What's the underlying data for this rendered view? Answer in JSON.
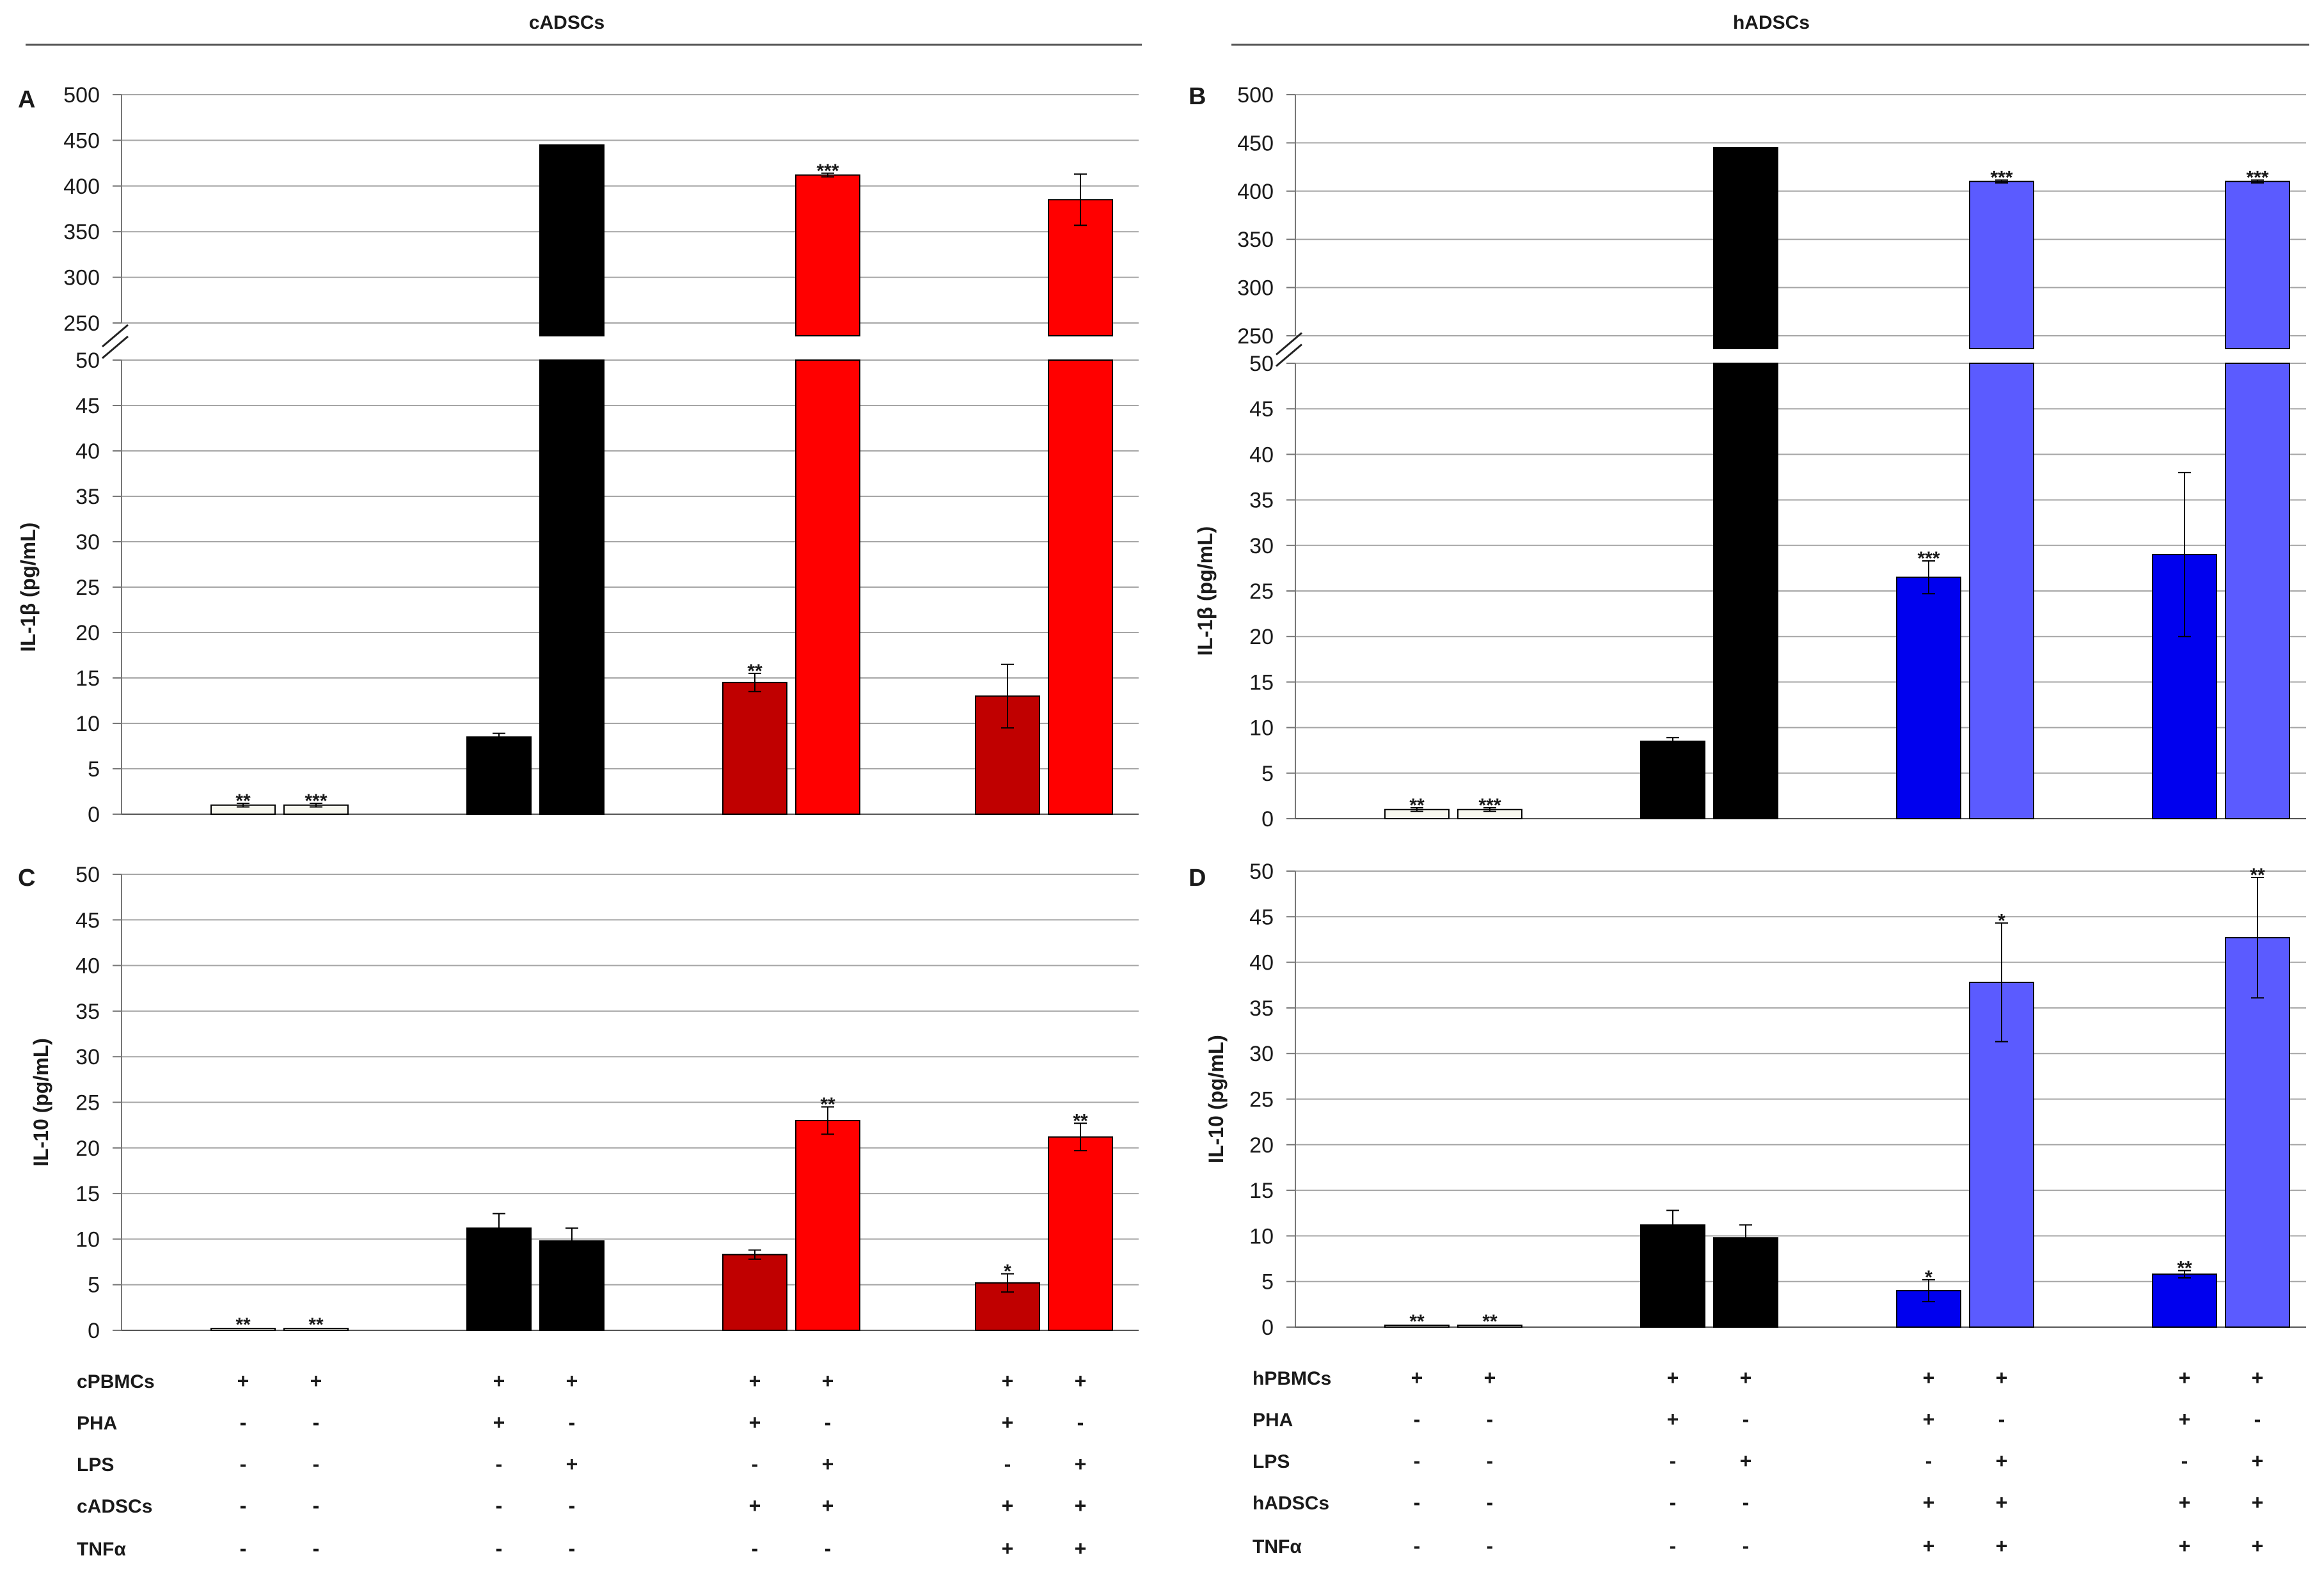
{
  "headers": {
    "left": "cADSCs",
    "right": "hADSCs"
  },
  "colors": {
    "control": "#f7f7ef",
    "pha": "#000000",
    "lps": "#000000",
    "cadsc_pha": "#c00000",
    "cadsc_lps": "#ff0000",
    "hadsc_pha": "#0000ee",
    "hadsc_lps": "#5b5bff"
  },
  "chart_data": [
    {
      "panel": "A",
      "type": "bar",
      "title": "",
      "ylabel": "IL-1β (pg/mL)",
      "broken_axis": true,
      "lower_ylim": [
        0,
        50
      ],
      "lower_ticks": [
        0,
        5,
        10,
        15,
        20,
        25,
        30,
        35,
        40,
        45,
        50
      ],
      "upper_ylim": [
        250,
        500
      ],
      "upper_ticks": [
        250,
        300,
        350,
        400,
        450,
        500
      ],
      "groups": 4,
      "bars": [
        {
          "group": 0,
          "slot": 0,
          "value": 1.0,
          "error": 0.2,
          "color": "control",
          "sig": "**"
        },
        {
          "group": 0,
          "slot": 1,
          "value": 1.0,
          "error": 0.2,
          "color": "control",
          "sig": "***"
        },
        {
          "group": 1,
          "slot": 0,
          "value": 8.5,
          "error": 0.4,
          "color": "pha",
          "sig": ""
        },
        {
          "group": 1,
          "slot": 1,
          "value": 445,
          "error": 0,
          "color": "lps",
          "sig": ""
        },
        {
          "group": 2,
          "slot": 0,
          "value": 14.5,
          "error": 1.0,
          "color": "cadsc_pha",
          "sig": "**"
        },
        {
          "group": 2,
          "slot": 1,
          "value": 412,
          "error": 2,
          "color": "cadsc_lps",
          "sig": "***"
        },
        {
          "group": 3,
          "slot": 0,
          "value": 13.0,
          "error": 3.5,
          "color": "cadsc_pha",
          "sig": ""
        },
        {
          "group": 3,
          "slot": 1,
          "value": 385,
          "error": 28,
          "color": "cadsc_lps",
          "sig": ""
        }
      ]
    },
    {
      "panel": "B",
      "type": "bar",
      "title": "",
      "ylabel": "IL-1β (pg/mL)",
      "broken_axis": true,
      "lower_ylim": [
        0,
        50
      ],
      "lower_ticks": [
        0,
        5,
        10,
        15,
        20,
        25,
        30,
        35,
        40,
        45,
        50
      ],
      "upper_ylim": [
        250,
        500
      ],
      "upper_ticks": [
        250,
        300,
        350,
        400,
        450,
        500
      ],
      "groups": 4,
      "bars": [
        {
          "group": 0,
          "slot": 0,
          "value": 1.0,
          "error": 0.2,
          "color": "control",
          "sig": "**"
        },
        {
          "group": 0,
          "slot": 1,
          "value": 1.0,
          "error": 0.2,
          "color": "control",
          "sig": "***"
        },
        {
          "group": 1,
          "slot": 0,
          "value": 8.5,
          "error": 0.4,
          "color": "pha",
          "sig": ""
        },
        {
          "group": 1,
          "slot": 1,
          "value": 445,
          "error": 0,
          "color": "lps",
          "sig": ""
        },
        {
          "group": 2,
          "slot": 0,
          "value": 26.5,
          "error": 1.8,
          "color": "hadsc_pha",
          "sig": "***"
        },
        {
          "group": 2,
          "slot": 1,
          "value": 410,
          "error": 1.5,
          "color": "hadsc_lps",
          "sig": "***"
        },
        {
          "group": 3,
          "slot": 0,
          "value": 29.0,
          "error": 9.0,
          "color": "hadsc_pha",
          "sig": ""
        },
        {
          "group": 3,
          "slot": 1,
          "value": 410,
          "error": 1.5,
          "color": "hadsc_lps",
          "sig": "***"
        }
      ]
    },
    {
      "panel": "C",
      "type": "bar",
      "title": "",
      "ylabel": "IL-10 (pg/mL)",
      "broken_axis": false,
      "ylim": [
        0,
        50
      ],
      "ticks": [
        0,
        5,
        10,
        15,
        20,
        25,
        30,
        35,
        40,
        45,
        50
      ],
      "groups": 4,
      "bars": [
        {
          "group": 0,
          "slot": 0,
          "value": 0.2,
          "error": 0,
          "color": "control",
          "sig": "**"
        },
        {
          "group": 0,
          "slot": 1,
          "value": 0.2,
          "error": 0,
          "color": "control",
          "sig": "**"
        },
        {
          "group": 1,
          "slot": 0,
          "value": 11.2,
          "error": 1.6,
          "color": "pha",
          "sig": ""
        },
        {
          "group": 1,
          "slot": 1,
          "value": 9.8,
          "error": 1.4,
          "color": "lps",
          "sig": ""
        },
        {
          "group": 2,
          "slot": 0,
          "value": 8.3,
          "error": 0.5,
          "color": "cadsc_pha",
          "sig": ""
        },
        {
          "group": 2,
          "slot": 1,
          "value": 23.0,
          "error": 1.5,
          "color": "cadsc_lps",
          "sig": "**"
        },
        {
          "group": 3,
          "slot": 0,
          "value": 5.2,
          "error": 1.0,
          "color": "cadsc_pha",
          "sig": "*"
        },
        {
          "group": 3,
          "slot": 1,
          "value": 21.2,
          "error": 1.5,
          "color": "cadsc_lps",
          "sig": "**"
        }
      ]
    },
    {
      "panel": "D",
      "type": "bar",
      "title": "",
      "ylabel": "IL-10 (pg/mL)",
      "broken_axis": false,
      "ylim": [
        0,
        50
      ],
      "ticks": [
        0,
        5,
        10,
        15,
        20,
        25,
        30,
        35,
        40,
        45,
        50
      ],
      "groups": 4,
      "bars": [
        {
          "group": 0,
          "slot": 0,
          "value": 0.2,
          "error": 0,
          "color": "control",
          "sig": "**"
        },
        {
          "group": 0,
          "slot": 1,
          "value": 0.2,
          "error": 0,
          "color": "control",
          "sig": "**"
        },
        {
          "group": 1,
          "slot": 0,
          "value": 11.2,
          "error": 1.6,
          "color": "pha",
          "sig": ""
        },
        {
          "group": 1,
          "slot": 1,
          "value": 9.8,
          "error": 1.4,
          "color": "lps",
          "sig": ""
        },
        {
          "group": 2,
          "slot": 0,
          "value": 4.0,
          "error": 1.2,
          "color": "hadsc_pha",
          "sig": "*"
        },
        {
          "group": 2,
          "slot": 1,
          "value": 37.8,
          "error": 6.5,
          "color": "hadsc_lps",
          "sig": "*"
        },
        {
          "group": 3,
          "slot": 0,
          "value": 5.8,
          "error": 0.4,
          "color": "hadsc_pha",
          "sig": "**"
        },
        {
          "group": 3,
          "slot": 1,
          "value": 42.7,
          "error": 6.6,
          "color": "hadsc_lps",
          "sig": "**"
        }
      ]
    }
  ],
  "conditions": {
    "left": {
      "rows": [
        {
          "name": "cPBMCs",
          "values": [
            "+",
            "+",
            "+",
            "+",
            "+",
            "+",
            "+",
            "+"
          ]
        },
        {
          "name": "PHA",
          "values": [
            "-",
            "-",
            "+",
            "-",
            "+",
            "-",
            "+",
            "-"
          ]
        },
        {
          "name": "LPS",
          "values": [
            "-",
            "-",
            "-",
            "+",
            "-",
            "+",
            "-",
            "+"
          ]
        },
        {
          "name": "cADSCs",
          "values": [
            "-",
            "-",
            "-",
            "-",
            "+",
            "+",
            "+",
            "+"
          ]
        },
        {
          "name": "TNFα",
          "values": [
            "-",
            "-",
            "-",
            "-",
            "-",
            "-",
            "+",
            "+"
          ]
        }
      ]
    },
    "right": {
      "rows": [
        {
          "name": "hPBMCs",
          "values": [
            "+",
            "+",
            "+",
            "+",
            "+",
            "+",
            "+",
            "+"
          ]
        },
        {
          "name": "PHA",
          "values": [
            "-",
            "-",
            "+",
            "-",
            "+",
            "-",
            "+",
            "-"
          ]
        },
        {
          "name": "LPS",
          "values": [
            "-",
            "-",
            "-",
            "+",
            "-",
            "+",
            "-",
            "+"
          ]
        },
        {
          "name": "hADSCs",
          "values": [
            "-",
            "-",
            "-",
            "-",
            "+",
            "+",
            "+",
            "+"
          ]
        },
        {
          "name": "TNFα",
          "values": [
            "-",
            "-",
            "-",
            "-",
            "+",
            "+",
            "+",
            "+"
          ]
        }
      ]
    }
  }
}
